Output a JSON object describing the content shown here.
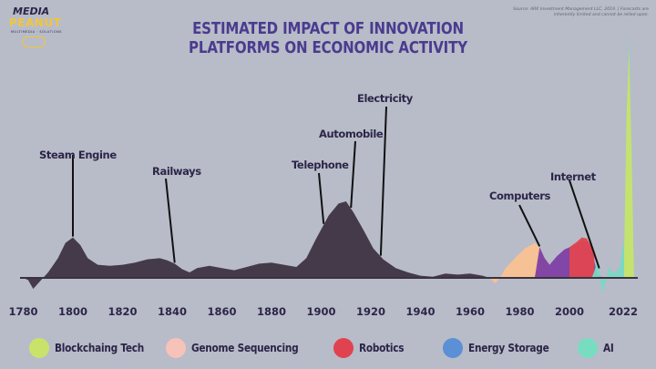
{
  "logo": {
    "line1": "MEDIA",
    "line2": "PEANUT",
    "tagline": "MULTIMEDIA · SOLUTIONS"
  },
  "source_note": "Source: ARK Investment Management LLC, 2019. | Forecasts are inherently limited and cannot be relied upon.",
  "chart_data": {
    "type": "area",
    "title": "ESTIMATED IMPACT OF INNOVATION PLATFORMS ON ECONOMIC ACTIVITY",
    "xlabel": "",
    "ylabel": "",
    "x_ticks": [
      "1780",
      "1800",
      "1820",
      "1840",
      "1860",
      "1880",
      "1900",
      "1920",
      "1940",
      "1960",
      "1980",
      "2000",
      "2022"
    ],
    "xlim": [
      1780,
      2027
    ],
    "grid": false,
    "legend_position": "bottom",
    "background_area": {
      "color": "#443a4a",
      "points": [
        [
          1780,
          0
        ],
        [
          1782,
          -2
        ],
        [
          1784,
          -10
        ],
        [
          1786,
          -5
        ],
        [
          1788,
          0
        ],
        [
          1790,
          5
        ],
        [
          1794,
          18
        ],
        [
          1797,
          32
        ],
        [
          1800,
          37
        ],
        [
          1803,
          30
        ],
        [
          1806,
          18
        ],
        [
          1810,
          12
        ],
        [
          1815,
          11
        ],
        [
          1820,
          12
        ],
        [
          1825,
          14
        ],
        [
          1830,
          17
        ],
        [
          1835,
          18
        ],
        [
          1838,
          16
        ],
        [
          1841,
          13
        ],
        [
          1844,
          8
        ],
        [
          1847,
          5
        ],
        [
          1850,
          9
        ],
        [
          1855,
          11
        ],
        [
          1860,
          9
        ],
        [
          1865,
          7
        ],
        [
          1870,
          10
        ],
        [
          1875,
          13
        ],
        [
          1880,
          14
        ],
        [
          1885,
          12
        ],
        [
          1890,
          10
        ],
        [
          1894,
          18
        ],
        [
          1898,
          36
        ],
        [
          1903,
          57
        ],
        [
          1907,
          68
        ],
        [
          1910,
          70
        ],
        [
          1913,
          60
        ],
        [
          1917,
          44
        ],
        [
          1921,
          27
        ],
        [
          1925,
          17
        ],
        [
          1930,
          9
        ],
        [
          1935,
          5
        ],
        [
          1940,
          2
        ],
        [
          1945,
          1
        ],
        [
          1950,
          4
        ],
        [
          1955,
          3
        ],
        [
          1960,
          4
        ],
        [
          1965,
          2
        ],
        [
          1968,
          0
        ]
      ]
    },
    "annotations": [
      {
        "label": "Steam Engine",
        "year": 1800
      },
      {
        "label": "Railways",
        "year": 1841
      },
      {
        "label": "Telephone",
        "year": 1901
      },
      {
        "label": "Automobile",
        "year": 1912
      },
      {
        "label": "Electricity",
        "year": 1924
      },
      {
        "label": "Computers",
        "year": 1988
      },
      {
        "label": "Internet",
        "year": 2012
      }
    ],
    "series": [
      {
        "name": "Genome Sequencing",
        "color": "#f9c191",
        "points": [
          [
            1968,
            0
          ],
          [
            1970,
            -5
          ],
          [
            1972,
            0
          ],
          [
            1974,
            8
          ],
          [
            1978,
            18
          ],
          [
            1982,
            27
          ],
          [
            1986,
            32
          ],
          [
            1988,
            28
          ],
          [
            1990,
            18
          ],
          [
            1993,
            5
          ],
          [
            1996,
            2
          ],
          [
            2000,
            2
          ],
          [
            2006,
            2
          ],
          [
            2010,
            0
          ]
        ]
      },
      {
        "name": "Robotics",
        "color": "#7d3fa5",
        "points": [
          [
            1986,
            0
          ],
          [
            1988,
            28
          ],
          [
            1990,
            18
          ],
          [
            1992,
            12
          ],
          [
            1995,
            20
          ],
          [
            1998,
            26
          ],
          [
            2002,
            30
          ],
          [
            2005,
            34
          ],
          [
            2007,
            33
          ],
          [
            2009,
            26
          ],
          [
            2011,
            5
          ],
          [
            2013,
            0
          ]
        ]
      },
      {
        "name": "Energy Storage",
        "color": "#e04650",
        "points": [
          [
            2000,
            28
          ],
          [
            2003,
            33
          ],
          [
            2005,
            37
          ],
          [
            2007,
            36
          ],
          [
            2009,
            28
          ],
          [
            2010,
            22
          ]
        ]
      },
      {
        "name": "AI",
        "color": "#78d8c4",
        "points": [
          [
            2009,
            0
          ],
          [
            2010,
            6
          ],
          [
            2011,
            14
          ],
          [
            2012,
            8
          ],
          [
            2013,
            -12
          ],
          [
            2014,
            -10
          ],
          [
            2015,
            0
          ],
          [
            2016,
            10
          ],
          [
            2017,
            6
          ],
          [
            2018,
            4
          ],
          [
            2020,
            8
          ],
          [
            2022,
            34
          ],
          [
            2023,
            140
          ],
          [
            2024,
            220
          ],
          [
            2025,
            120
          ],
          [
            2026,
            0
          ]
        ]
      },
      {
        "name": "Blockchaing Tech",
        "color": "#c9e36a",
        "points": [
          [
            2022,
            20
          ],
          [
            2023,
            150
          ],
          [
            2024,
            210
          ],
          [
            2025,
            120
          ],
          [
            2026,
            0
          ]
        ]
      }
    ],
    "legend": [
      {
        "label": "Blockchaing Tech",
        "color": "#c9e36a"
      },
      {
        "label": "Genome Sequencing",
        "color": "#f7c2b8"
      },
      {
        "label": "Robotics",
        "color": "#e0434f"
      },
      {
        "label": "Energy Storage",
        "color": "#5b8fd6"
      },
      {
        "label": "AI",
        "color": "#78dcc0"
      }
    ]
  }
}
